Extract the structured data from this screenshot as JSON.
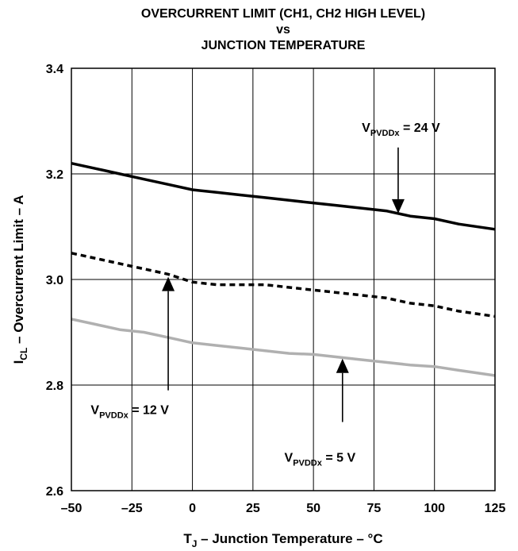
{
  "chart_data": {
    "type": "line",
    "title_lines": [
      "OVERCURRENT LIMIT (CH1, CH2 HIGH LEVEL)",
      "vs",
      "JUNCTION TEMPERATURE"
    ],
    "xlabel": {
      "main": "T",
      "sub": "J",
      "rest": " – Junction Temperature – °C"
    },
    "ylabel": {
      "main": "I",
      "sub": "CL",
      "rest": " – Overcurrent Limit – A"
    },
    "xlim": [
      -50,
      125
    ],
    "ylim": [
      2.6,
      3.4
    ],
    "x_ticks": [
      -50,
      -25,
      0,
      25,
      50,
      75,
      100,
      125
    ],
    "x_tick_labels": [
      "–50",
      "–25",
      "0",
      "25",
      "50",
      "75",
      "100",
      "125"
    ],
    "y_ticks": [
      2.6,
      2.8,
      3.0,
      3.2,
      3.4
    ],
    "y_tick_labels": [
      "2.6",
      "2.8",
      "3.0",
      "3.2",
      "3.4"
    ],
    "grid": true,
    "series": [
      {
        "label": {
          "main": "V",
          "sub": "PVDDx",
          "rest": " = 24 V"
        },
        "color": "#000000",
        "style": "solid",
        "x": [
          -50,
          -40,
          -30,
          -20,
          -10,
          0,
          10,
          20,
          30,
          40,
          50,
          60,
          70,
          80,
          90,
          100,
          110,
          125
        ],
        "values": [
          3.22,
          3.21,
          3.2,
          3.19,
          3.18,
          3.17,
          3.165,
          3.16,
          3.155,
          3.15,
          3.145,
          3.14,
          3.135,
          3.13,
          3.12,
          3.115,
          3.105,
          3.095
        ]
      },
      {
        "label": {
          "main": "V",
          "sub": "PVDDx",
          "rest": " = 12 V"
        },
        "color": "#000000",
        "style": "dashed",
        "x": [
          -50,
          -40,
          -30,
          -20,
          -10,
          0,
          10,
          20,
          30,
          40,
          50,
          60,
          70,
          80,
          90,
          100,
          110,
          125
        ],
        "values": [
          3.05,
          3.04,
          3.03,
          3.02,
          3.01,
          2.995,
          2.99,
          2.99,
          2.99,
          2.985,
          2.98,
          2.975,
          2.97,
          2.965,
          2.955,
          2.95,
          2.94,
          2.93
        ]
      },
      {
        "label": {
          "main": "V",
          "sub": "PVDDx",
          "rest": " = 5 V"
        },
        "color": "#b0b0b0",
        "style": "solid",
        "x": [
          -50,
          -40,
          -30,
          -20,
          -10,
          0,
          10,
          20,
          30,
          40,
          50,
          60,
          70,
          80,
          90,
          100,
          110,
          125
        ],
        "values": [
          2.925,
          2.915,
          2.905,
          2.9,
          2.89,
          2.88,
          2.875,
          2.87,
          2.865,
          2.86,
          2.858,
          2.853,
          2.848,
          2.843,
          2.838,
          2.835,
          2.828,
          2.818
        ]
      }
    ],
    "annotations": [
      {
        "series": 0,
        "text_x": 70,
        "text_y": 3.28,
        "arrow_from": [
          85,
          3.25
        ],
        "arrow_to": [
          85,
          3.125
        ]
      },
      {
        "series": 1,
        "text_x": -42,
        "text_y": 2.745,
        "arrow_from": [
          -10,
          2.79
        ],
        "arrow_to": [
          -10,
          3.005
        ]
      },
      {
        "series": 2,
        "text_x": 38,
        "text_y": 2.655,
        "arrow_from": [
          62,
          2.73
        ],
        "arrow_to": [
          62,
          2.85
        ]
      }
    ]
  }
}
